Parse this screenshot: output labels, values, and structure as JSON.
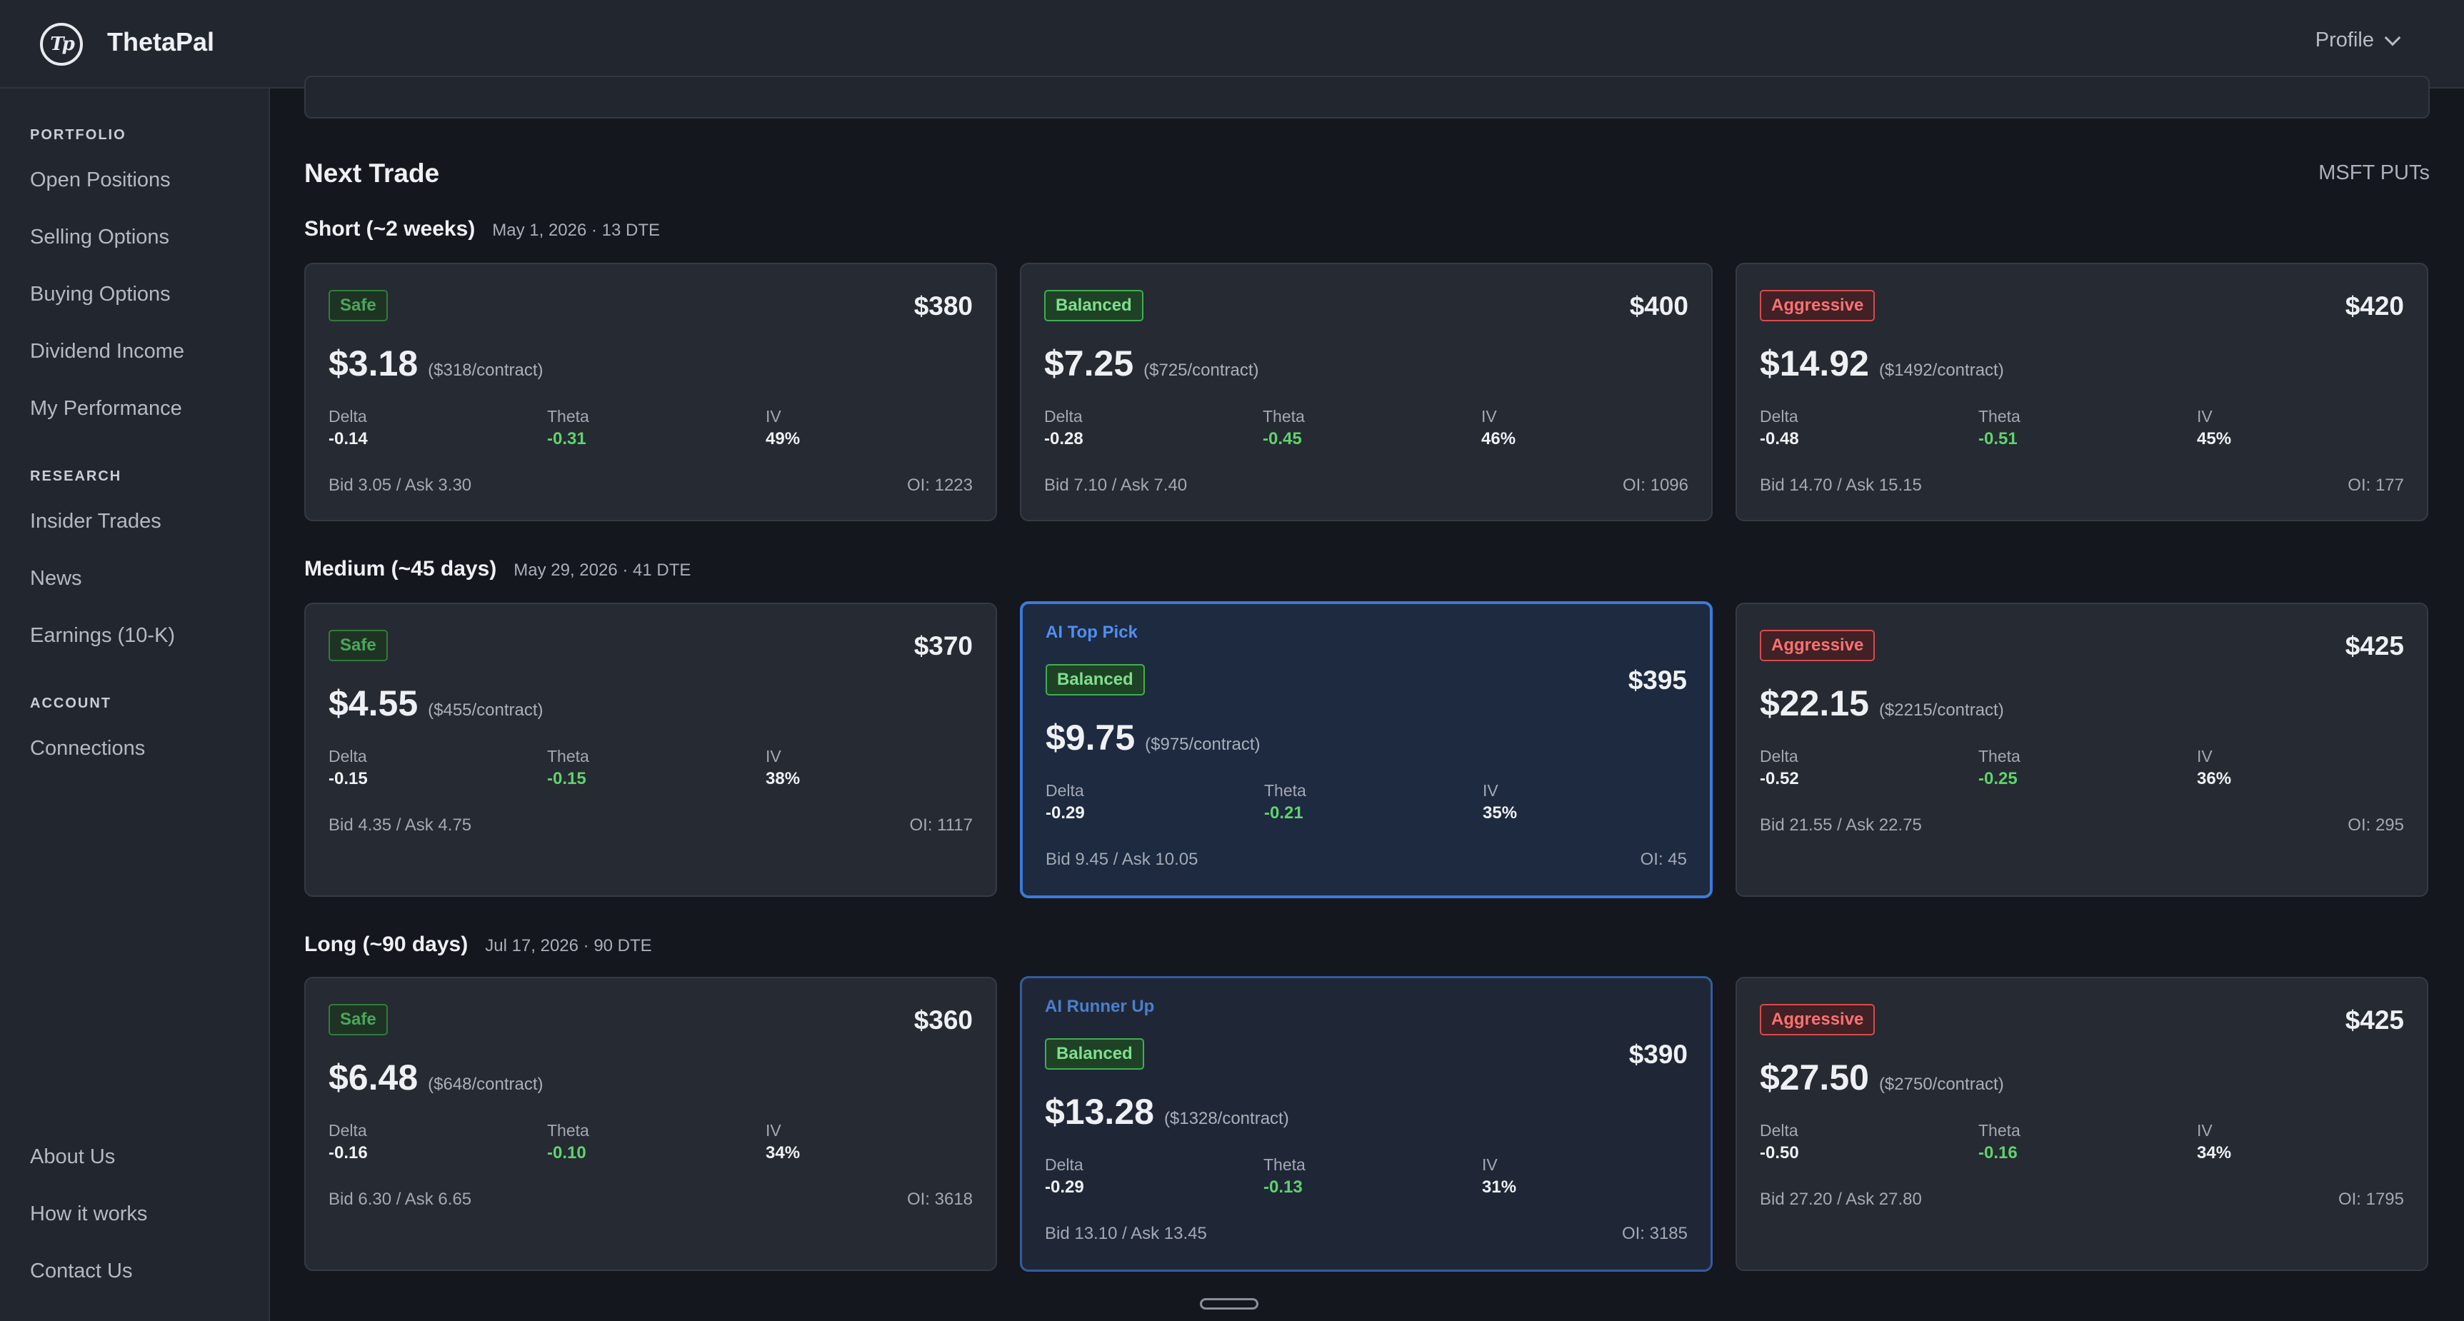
{
  "app": {
    "name": "ThetaPal",
    "logo_text": "Tp"
  },
  "header": {
    "profile_label": "Profile"
  },
  "sidebar": {
    "sections": [
      {
        "title": "PORTFOLIO",
        "items": [
          "Open Positions",
          "Selling Options",
          "Buying Options",
          "Dividend Income",
          "My Performance"
        ]
      },
      {
        "title": "RESEARCH",
        "items": [
          "Insider Trades",
          "News",
          "Earnings (10-K)"
        ]
      },
      {
        "title": "ACCOUNT",
        "items": [
          "Connections"
        ]
      }
    ],
    "footer_items": [
      "About Us",
      "How it works",
      "Contact Us"
    ]
  },
  "main": {
    "title": "Next Trade",
    "meta": "MSFT PUTs",
    "rows": [
      {
        "title": "Short (~2 weeks)",
        "date": "May 1, 2026 · 13 DTE",
        "cards": [
          {
            "highlight": "",
            "badge": "Safe",
            "strike": "$380",
            "premium": "$3.18",
            "per_contract": "($318/contract)",
            "delta": "-0.14",
            "theta": "-0.31",
            "iv": "49%",
            "bidask": "Bid 3.05 / Ask 3.30",
            "oi": "OI: 1223"
          },
          {
            "highlight": "",
            "badge": "Balanced",
            "strike": "$400",
            "premium": "$7.25",
            "per_contract": "($725/contract)",
            "delta": "-0.28",
            "theta": "-0.45",
            "iv": "46%",
            "bidask": "Bid 7.10 / Ask 7.40",
            "oi": "OI: 1096"
          },
          {
            "highlight": "",
            "badge": "Aggressive",
            "strike": "$420",
            "premium": "$14.92",
            "per_contract": "($1492/contract)",
            "delta": "-0.48",
            "theta": "-0.51",
            "iv": "45%",
            "bidask": "Bid 14.70 / Ask 15.15",
            "oi": "OI: 177"
          }
        ]
      },
      {
        "title": "Medium (~45 days)",
        "date": "May 29, 2026 · 41 DTE",
        "cards": [
          {
            "highlight": "",
            "badge": "Safe",
            "strike": "$370",
            "premium": "$4.55",
            "per_contract": "($455/contract)",
            "delta": "-0.15",
            "theta": "-0.15",
            "iv": "38%",
            "bidask": "Bid 4.35 / Ask 4.75",
            "oi": "OI: 1117"
          },
          {
            "highlight": "AI Top Pick",
            "badge": "Balanced",
            "strike": "$395",
            "premium": "$9.75",
            "per_contract": "($975/contract)",
            "delta": "-0.29",
            "theta": "-0.21",
            "iv": "35%",
            "bidask": "Bid 9.45 / Ask 10.05",
            "oi": "OI: 45"
          },
          {
            "highlight": "",
            "badge": "Aggressive",
            "strike": "$425",
            "premium": "$22.15",
            "per_contract": "($2215/contract)",
            "delta": "-0.52",
            "theta": "-0.25",
            "iv": "36%",
            "bidask": "Bid 21.55 / Ask 22.75",
            "oi": "OI: 295"
          }
        ]
      },
      {
        "title": "Long (~90 days)",
        "date": "Jul 17, 2026 · 90 DTE",
        "cards": [
          {
            "highlight": "",
            "badge": "Safe",
            "strike": "$360",
            "premium": "$6.48",
            "per_contract": "($648/contract)",
            "delta": "-0.16",
            "theta": "-0.10",
            "iv": "34%",
            "bidask": "Bid 6.30 / Ask 6.65",
            "oi": "OI: 3618"
          },
          {
            "highlight": "AI Runner Up",
            "badge": "Balanced",
            "strike": "$390",
            "premium": "$13.28",
            "per_contract": "($1328/contract)",
            "delta": "-0.29",
            "theta": "-0.13",
            "iv": "31%",
            "bidask": "Bid 13.10 / Ask 13.45",
            "oi": "OI: 3185"
          },
          {
            "highlight": "",
            "badge": "Aggressive",
            "strike": "$425",
            "premium": "$27.50",
            "per_contract": "($2750/contract)",
            "delta": "-0.50",
            "theta": "-0.16",
            "iv": "34%",
            "bidask": "Bid 27.20 / Ask 27.80",
            "oi": "OI: 1795"
          }
        ]
      }
    ],
    "greek_labels": {
      "delta": "Delta",
      "theta": "Theta",
      "iv": "IV"
    }
  },
  "colors": {
    "background": "#14171d",
    "panel": "#22262e",
    "card": "#262a32",
    "accent_blue": "#3b7ad9",
    "safe_green": "#49a85a",
    "balanced_green": "#7de08a",
    "aggressive_red": "#ff7070",
    "theta_green": "#5fd36c"
  },
  "icons": {
    "logo": "tp-logo-icon",
    "profile_menu": "chevron-down-icon"
  }
}
